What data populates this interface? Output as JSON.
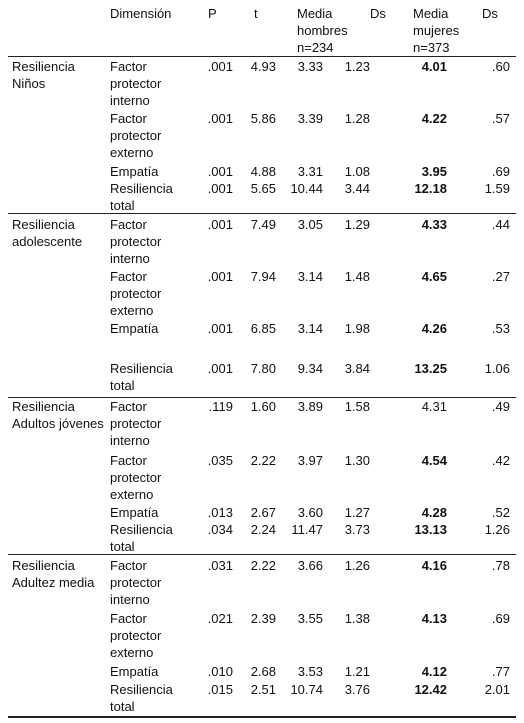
{
  "table": {
    "header": [
      "Dimensión",
      "P",
      "t",
      "Media hombres n=234",
      "Ds",
      "Media mujeres n=373",
      "Ds"
    ],
    "groups": [
      {
        "label": "Resiliencia Niños",
        "rows": [
          {
            "cells": [
              "Factor protector interno",
              ".001",
              "4.93",
              "3.33",
              "1.23",
              "4.01",
              ".60"
            ],
            "bold_mujeres": true
          },
          {
            "cells": [
              "Factor protector externo",
              ".001",
              "5.86",
              "3.39",
              "1.28",
              "4.22",
              ".57"
            ],
            "bold_mujeres": true
          },
          {
            "cells": [
              "Empatía",
              ".001",
              "4.88",
              "3.31",
              "1.08",
              "3.95",
              ".69"
            ],
            "bold_mujeres": true
          },
          {
            "cells": [
              "Resiliencia total",
              ".001",
              "5.65",
              "10.44",
              "3.44",
              "12.18",
              "1.59"
            ],
            "bold_mujeres": true
          }
        ]
      },
      {
        "label": "Resiliencia adolescente",
        "rows": [
          {
            "cells": [
              "Factor protector interno",
              ".001",
              "7.49",
              "3.05",
              "1.29",
              "4.33",
              ".44"
            ],
            "bold_mujeres": true
          },
          {
            "cells": [
              "Factor protector externo",
              ".001",
              "7.94",
              "3.14",
              "1.48",
              "4.65",
              ".27"
            ],
            "bold_mujeres": true
          },
          {
            "cells": [
              "Empatía",
              ".001",
              "6.85",
              "3.14",
              "1.98",
              "4.26",
              ".53"
            ],
            "bold_mujeres": true
          },
          {
            "cells": [
              "Resiliencia total",
              ".001",
              "7.80",
              "9.34",
              "3.84",
              "13.25",
              "1.06"
            ],
            "bold_mujeres": true
          }
        ]
      },
      {
        "label": "Resiliencia Adultos jóvenes",
        "rows": [
          {
            "cells": [
              "Factor protector interno",
              ".119",
              "1.60",
              "3.89",
              "1.58",
              "4.31",
              ".49"
            ],
            "bold_mujeres": false
          },
          {
            "cells": [
              "Factor protector externo",
              ".035",
              "2.22",
              "3.97",
              "1.30",
              "4.54",
              ".42"
            ],
            "bold_mujeres": true
          },
          {
            "cells": [
              "Empatía",
              ".013",
              "2.67",
              "3.60",
              "1.27",
              "4.28",
              ".52"
            ],
            "bold_mujeres": true
          },
          {
            "cells": [
              "Resiliencia total",
              ".034",
              "2.24",
              "11.47",
              "3.73",
              "13.13",
              "1.26"
            ],
            "bold_mujeres": true
          }
        ]
      },
      {
        "label": "Resiliencia Adultez media",
        "rows": [
          {
            "cells": [
              "Factor protector interno",
              ".031",
              "2.22",
              "3.66",
              "1.26",
              "4.16",
              ".78"
            ],
            "bold_mujeres": true
          },
          {
            "cells": [
              "Factor protector externo",
              ".021",
              "2.39",
              "3.55",
              "1.38",
              "4.13",
              ".69"
            ],
            "bold_mujeres": true
          },
          {
            "cells": [
              "Empatía",
              ".010",
              "2.68",
              "3.53",
              "1.21",
              "4.12",
              ".77"
            ],
            "bold_mujeres": true
          },
          {
            "cells": [
              "Resiliencia total",
              ".015",
              "2.51",
              "10.74",
              "3.76",
              "12.42",
              "2.01"
            ],
            "bold_mujeres": true
          }
        ]
      }
    ]
  }
}
